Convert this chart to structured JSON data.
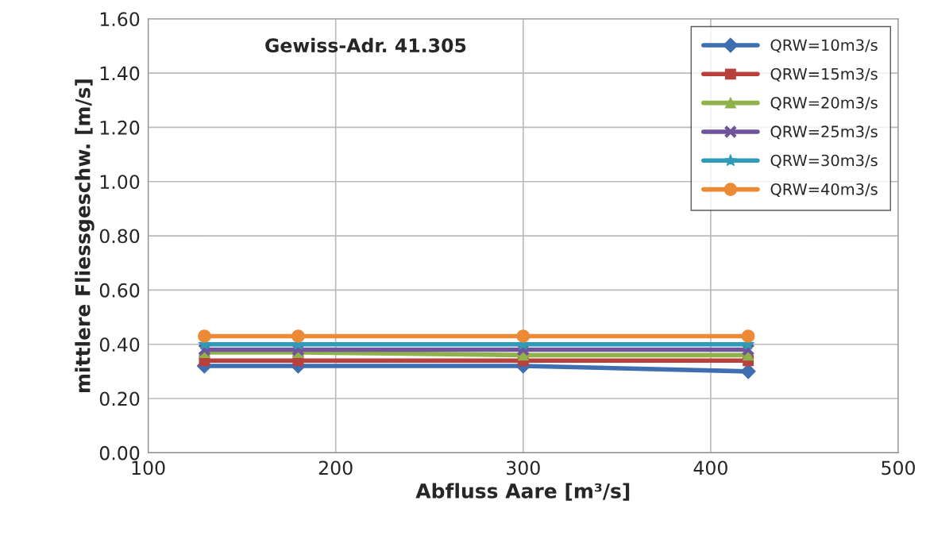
{
  "chart_data": {
    "type": "line",
    "xlabel": "Abfluss Aare [m³/s]",
    "ylabel": "mittlere Fliessgeschw. [m/s]",
    "annotations": [
      "Gewiss-Adr. 41.305"
    ],
    "x": [
      130,
      180,
      300,
      420
    ],
    "series": [
      {
        "name": "QRW=10m3/s",
        "color": "#3f6fb0",
        "marker": "diamond",
        "values": [
          0.32,
          0.32,
          0.32,
          0.3
        ]
      },
      {
        "name": "QRW=15m3/s",
        "color": "#b9413d",
        "marker": "square",
        "values": [
          0.34,
          0.34,
          0.34,
          0.34
        ]
      },
      {
        "name": "QRW=20m3/s",
        "color": "#8fb24a",
        "marker": "triangle",
        "values": [
          0.37,
          0.37,
          0.36,
          0.36
        ]
      },
      {
        "name": "QRW=25m3/s",
        "color": "#70539a",
        "marker": "cross",
        "values": [
          0.38,
          0.38,
          0.38,
          0.38
        ]
      },
      {
        "name": "QRW=30m3/s",
        "color": "#2f9bb8",
        "marker": "star",
        "values": [
          0.4,
          0.4,
          0.4,
          0.4
        ]
      },
      {
        "name": "QRW=40m3/s",
        "color": "#ec8a35",
        "marker": "circle",
        "values": [
          0.43,
          0.43,
          0.43,
          0.43
        ]
      }
    ],
    "xlim": [
      100,
      500
    ],
    "xticks": [
      100,
      200,
      300,
      400,
      500
    ],
    "ylim": [
      0,
      1.6
    ],
    "yticks": [
      {
        "value": 0,
        "label": "0.00"
      },
      {
        "value": 0.2,
        "label": "0.20"
      },
      {
        "value": 0.4,
        "label": "0.40"
      },
      {
        "value": 0.6,
        "label": "0.60"
      },
      {
        "value": 0.8,
        "label": "0.80"
      },
      {
        "value": 1.0,
        "label": "1.00"
      },
      {
        "value": 1.2,
        "label": "1.20"
      },
      {
        "value": 1.4,
        "label": "1.40"
      },
      {
        "value": 1.6,
        "label": "1.60"
      }
    ],
    "grid": true,
    "legend": "top right",
    "line_style": "solid"
  }
}
